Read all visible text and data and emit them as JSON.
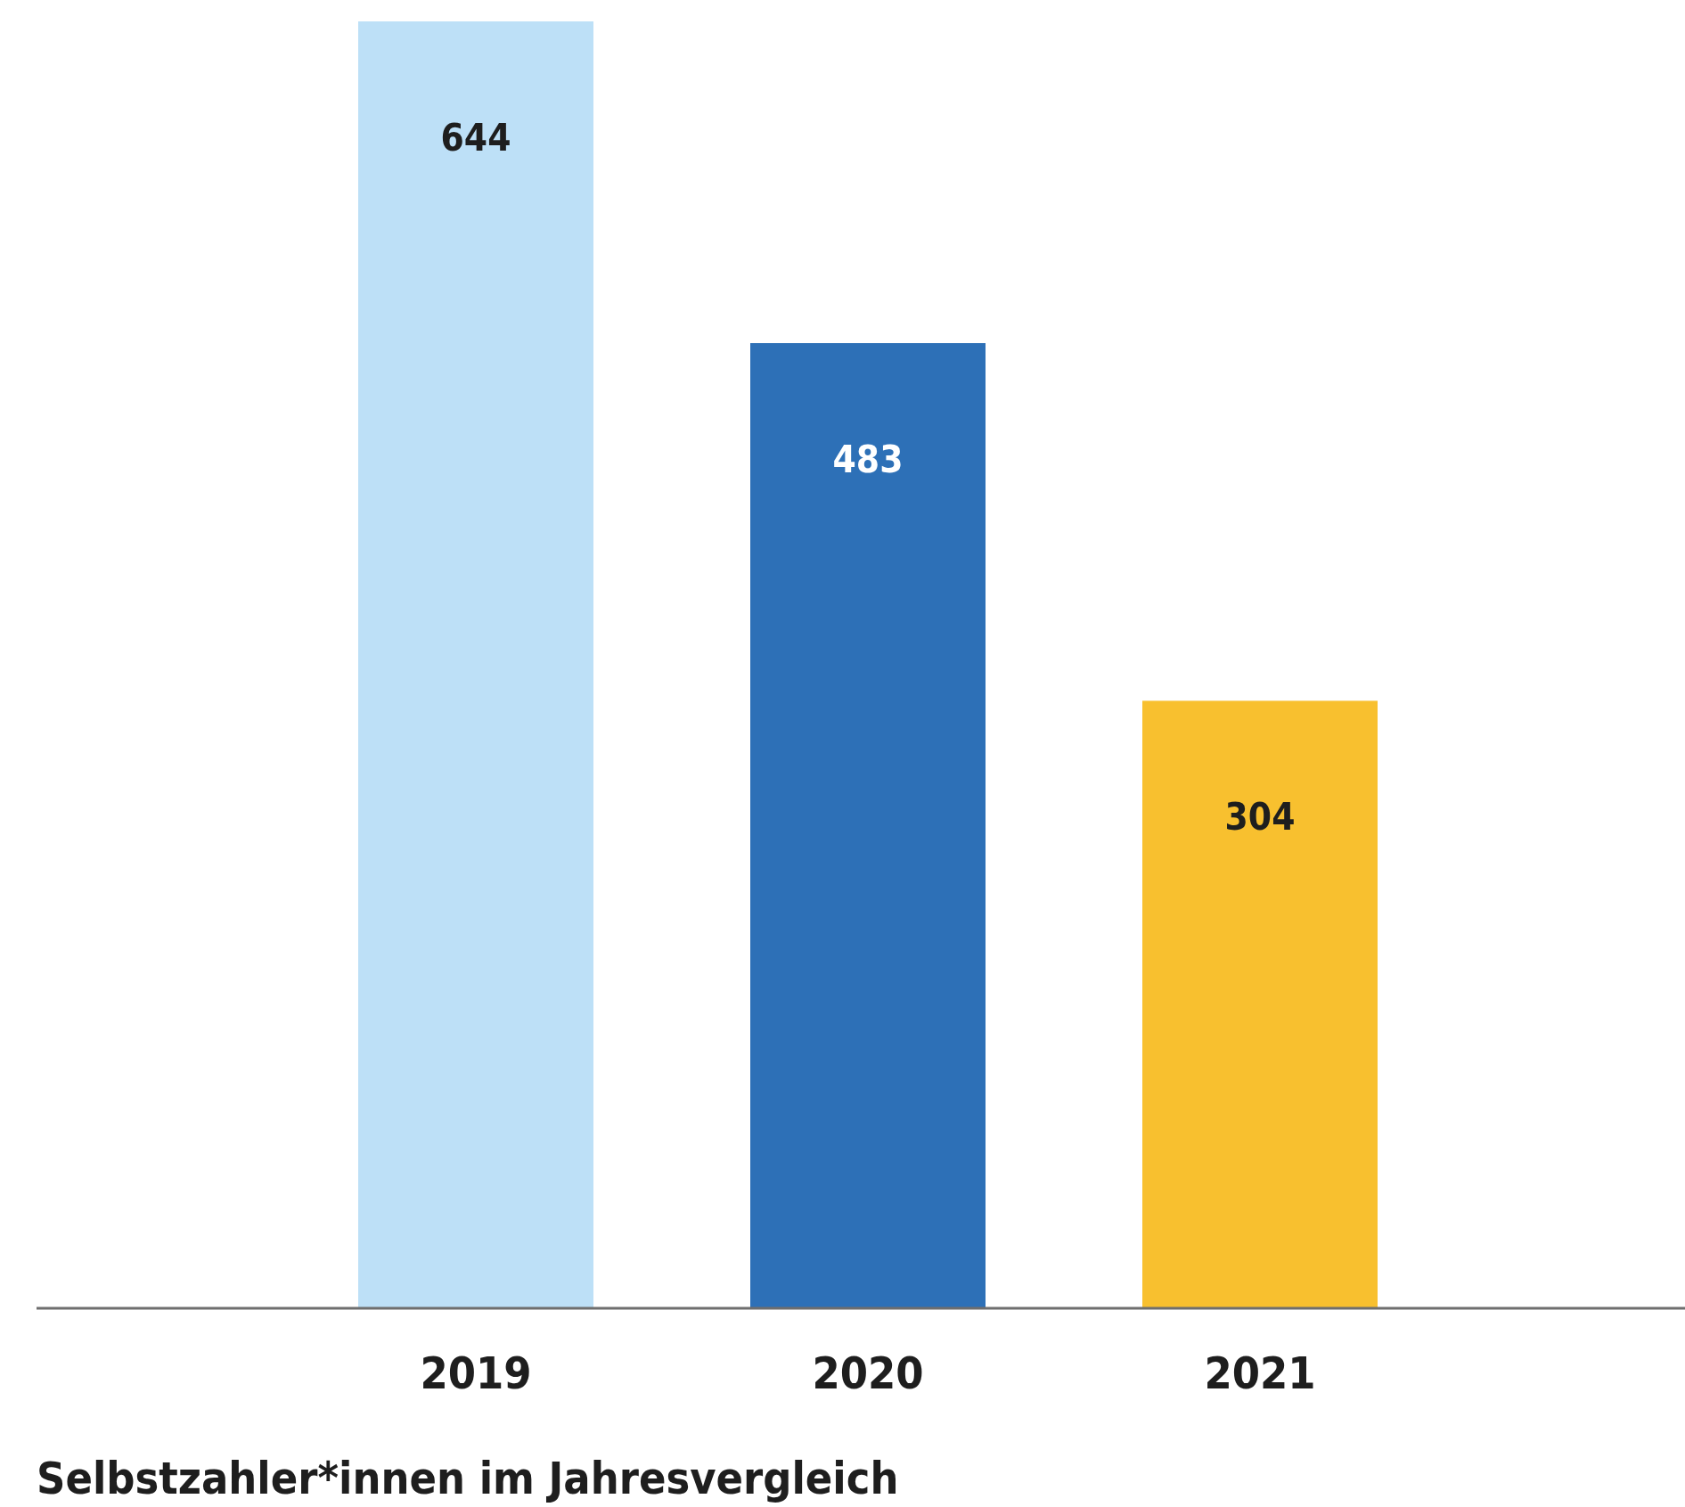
{
  "chart_data": {
    "type": "bar",
    "title": "Selbstzahler*innen im Jahresvergleich",
    "categories": [
      "2019",
      "2020",
      "2021"
    ],
    "values": [
      644,
      483,
      304
    ],
    "colors": [
      "#bde0f7",
      "#2d70b7",
      "#f8c02f"
    ],
    "data_labels": true
  }
}
